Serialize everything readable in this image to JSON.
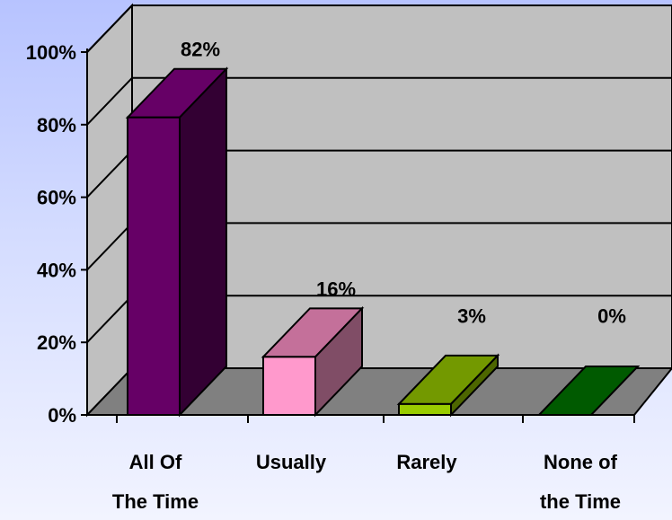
{
  "chart_data": {
    "type": "bar",
    "categories": [
      [
        "All Of",
        "The Time"
      ],
      [
        "Usually"
      ],
      [
        "Rarely"
      ],
      [
        "None of",
        "the Time"
      ]
    ],
    "values": [
      82,
      16,
      3,
      0
    ],
    "data_labels": [
      "82%",
      "16%",
      "3%",
      "0%"
    ],
    "yticks": [
      "0%",
      "20%",
      "40%",
      "60%",
      "80%",
      "100%"
    ],
    "ylim": [
      0,
      100
    ],
    "grid": true,
    "legend": "none",
    "three_d": true,
    "colors": {
      "front": [
        "#660066",
        "#ff99cc",
        "#99cc00",
        "#008000"
      ],
      "side": [
        "#330033",
        "#804d66",
        "#4d6600",
        "#004000"
      ],
      "top": [
        "#660066",
        "#c4709a",
        "#739900",
        "#005a00"
      ],
      "wall": "#c0c0c0",
      "floor": "#808080"
    }
  }
}
